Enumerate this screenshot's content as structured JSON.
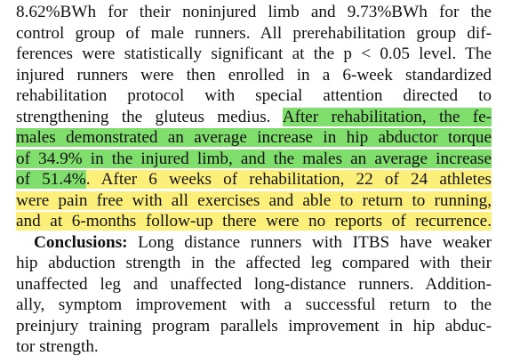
{
  "paragraphs": [
    {
      "lines": [
        [
          {
            "text": "8.62%BWh for their noninjured limb and 9.73%BWh for the"
          }
        ],
        [
          {
            "text": "control group of male runners. All prerehabilitation group dif-"
          }
        ],
        [
          {
            "text": "ferences were statistically significant at the p < 0.05 level. The"
          }
        ],
        [
          {
            "text": "injured runners were then enrolled in a 6-week standardized"
          }
        ],
        [
          {
            "text": "rehabilitation protocol with special attention directed to"
          }
        ],
        [
          {
            "text": "strengthening the gluteus medius. "
          },
          {
            "text": "After rehabilitation, the fe-",
            "highlight": "#80de6c"
          }
        ],
        [
          {
            "text": "males demonstrated an average increase in hip abductor torque",
            "highlight": "#80de6c"
          }
        ],
        [
          {
            "text": "of 34.9% in the injured limb, and the males an average increase",
            "highlight": "#80de6c"
          }
        ],
        [
          {
            "text": "of 51.4%",
            "highlight": "#80de6c"
          },
          {
            "text": ". After 6 weeks of rehabilitation, 22 of 24 athletes",
            "highlight": "#fdf07a"
          }
        ],
        [
          {
            "text": "were pain free with all exercises and able to return to running,",
            "highlight": "#fdf07a"
          }
        ],
        [
          {
            "text": "and at 6-months follow-up there were no reports of recurrence.",
            "highlight": "#fdf07a"
          }
        ]
      ]
    },
    {
      "lines": [
        [
          {
            "text": "Conclusions:",
            "bold": true
          },
          {
            "text": " Long distance runners with ITBS have weaker"
          }
        ],
        [
          {
            "text": "hip abduction strength in the affected leg compared with their"
          }
        ],
        [
          {
            "text": "unaffected leg and unaffected long-distance runners. Addition-"
          }
        ],
        [
          {
            "text": "ally, symptom improvement with a successful return to the"
          }
        ],
        [
          {
            "text": "preinjury training program parallels improvement in hip abduc-"
          }
        ],
        [
          {
            "text": "tor strength."
          }
        ]
      ]
    }
  ]
}
